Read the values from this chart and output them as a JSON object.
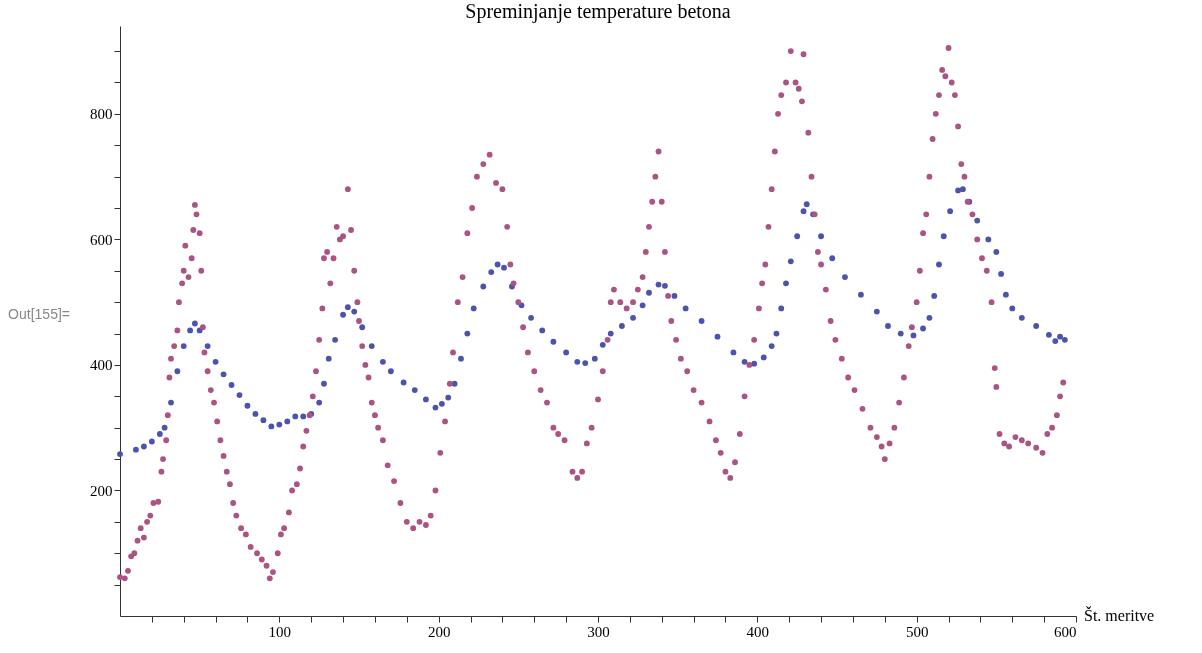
{
  "chart_data": {
    "type": "scatter",
    "title": "Spreminjanje temperature betona",
    "xlabel": "Št. meritve",
    "annotations": [
      "Out[155]="
    ],
    "xlim": [
      0,
      600
    ],
    "ylim": [
      0,
      940
    ],
    "xticks": [
      {
        "value": 20,
        "label": null
      },
      {
        "value": 40,
        "label": null
      },
      {
        "value": 60,
        "label": null
      },
      {
        "value": 80,
        "label": null
      },
      100,
      {
        "value": 120,
        "label": null
      },
      {
        "value": 140,
        "label": null
      },
      {
        "value": 160,
        "label": null
      },
      {
        "value": 180,
        "label": null
      },
      200,
      {
        "value": 220,
        "label": null
      },
      {
        "value": 240,
        "label": null
      },
      {
        "value": 260,
        "label": null
      },
      {
        "value": 280,
        "label": null
      },
      300,
      {
        "value": 320,
        "label": null
      },
      {
        "value": 340,
        "label": null
      },
      {
        "value": 360,
        "label": null
      },
      {
        "value": 380,
        "label": null
      },
      400,
      {
        "value": 420,
        "label": null
      },
      {
        "value": 440,
        "label": null
      },
      {
        "value": 460,
        "label": null
      },
      {
        "value": 480,
        "label": null
      },
      500,
      {
        "value": 520,
        "label": null
      },
      {
        "value": 540,
        "label": null
      },
      {
        "value": 560,
        "label": null
      },
      {
        "value": 580,
        "label": null
      },
      600
    ],
    "yticks": [
      {
        "value": 50,
        "label": null
      },
      {
        "value": 100,
        "label": null
      },
      {
        "value": 150,
        "label": null
      },
      200,
      {
        "value": 250,
        "label": null
      },
      {
        "value": 300,
        "label": null
      },
      {
        "value": 350,
        "label": null
      },
      400,
      {
        "value": 450,
        "label": null
      },
      {
        "value": 500,
        "label": null
      },
      {
        "value": 550,
        "label": null
      },
      600,
      {
        "value": 650,
        "label": null
      },
      {
        "value": 700,
        "label": null
      },
      {
        "value": 750,
        "label": null
      },
      800,
      {
        "value": 850,
        "label": null
      },
      {
        "value": 900,
        "label": null
      }
    ],
    "grid": false,
    "marker": "circle",
    "series": [
      {
        "color": "#4b53ad",
        "x": [
          0,
          10,
          15,
          20,
          25,
          28,
          32,
          36,
          40,
          44,
          47,
          50,
          55,
          60,
          65,
          70,
          75,
          80,
          85,
          90,
          95,
          100,
          105,
          110,
          115,
          120,
          125,
          128,
          131,
          135,
          140,
          143,
          147,
          152,
          158,
          165,
          170,
          178,
          185,
          192,
          198,
          202,
          206,
          210,
          214,
          218,
          222,
          228,
          233,
          237,
          241,
          246,
          252,
          258,
          265,
          272,
          280,
          287,
          292,
          298,
          303,
          308,
          315,
          322,
          328,
          332,
          338,
          342,
          348,
          355,
          365,
          375,
          385,
          392,
          398,
          404,
          409,
          412,
          415,
          418,
          421,
          425,
          429,
          431,
          435,
          440,
          447,
          455,
          465,
          475,
          482,
          490,
          498,
          504,
          508,
          511,
          514,
          517,
          521,
          526,
          529,
          533,
          538,
          545,
          550,
          553,
          556,
          560,
          566,
          575,
          583,
          587,
          590,
          593
        ],
        "values": [
          258,
          265,
          270,
          278,
          290,
          300,
          340,
          390,
          430,
          455,
          466,
          455,
          430,
          405,
          385,
          368,
          352,
          335,
          322,
          312,
          302,
          305,
          310,
          318,
          318,
          322,
          340,
          370,
          410,
          440,
          480,
          492,
          485,
          460,
          430,
          405,
          390,
          372,
          360,
          345,
          332,
          338,
          348,
          370,
          410,
          450,
          490,
          525,
          548,
          560,
          555,
          525,
          495,
          475,
          455,
          437,
          420,
          405,
          403,
          410,
          432,
          450,
          462,
          475,
          495,
          515,
          528,
          526,
          510,
          490,
          470,
          445,
          420,
          405,
          402,
          412,
          430,
          450,
          490,
          530,
          565,
          605,
          645,
          656,
          640,
          605,
          570,
          540,
          512,
          485,
          462,
          450,
          447,
          458,
          475,
          510,
          560,
          605,
          645,
          678,
          680,
          660,
          630,
          600,
          580,
          545,
          512,
          490,
          475,
          462,
          448,
          438,
          445,
          440
        ]
      },
      {
        "color": "#ab5382",
        "x": [
          0,
          3,
          5,
          7,
          9,
          11,
          13,
          15,
          17,
          19,
          21,
          24,
          26,
          27,
          29,
          30,
          31,
          32,
          34,
          36,
          37,
          39,
          40,
          41,
          43,
          45,
          46,
          47,
          48,
          50,
          51,
          52,
          53,
          55,
          57,
          59,
          61,
          63,
          65,
          67,
          69,
          71,
          73,
          76,
          79,
          82,
          86,
          89,
          92,
          94,
          96,
          99,
          101,
          103,
          106,
          108,
          111,
          113,
          115,
          117,
          119,
          121,
          123,
          125,
          127,
          128,
          130,
          132,
          134,
          136,
          138,
          140,
          143,
          145,
          147,
          149,
          150,
          152,
          154,
          156,
          158,
          160,
          162,
          165,
          168,
          172,
          176,
          180,
          184,
          188,
          192,
          195,
          198,
          201,
          204,
          207,
          209,
          212,
          215,
          218,
          221,
          224,
          228,
          232,
          236,
          240,
          243,
          245,
          247,
          250,
          253,
          256,
          260,
          264,
          268,
          272,
          275,
          279,
          284,
          287,
          290,
          293,
          296,
          300,
          303,
          306,
          308,
          310,
          314,
          318,
          322,
          325,
          328,
          330,
          332,
          334,
          336,
          338,
          340,
          342,
          344,
          346,
          349,
          352,
          356,
          360,
          365,
          370,
          374,
          377,
          380,
          383,
          386,
          389,
          392,
          395,
          398,
          401,
          403,
          405,
          407,
          409,
          411,
          413,
          415,
          418,
          421,
          424,
          426,
          428,
          429,
          432,
          434,
          436,
          438,
          440,
          443,
          446,
          449,
          453,
          457,
          461,
          466,
          471,
          475,
          478,
          480,
          483,
          486,
          489,
          492,
          495,
          497,
          500,
          502,
          504,
          506,
          508,
          510,
          512,
          514,
          516,
          518,
          520,
          522,
          524,
          526,
          528,
          530,
          532,
          535,
          538,
          541,
          544,
          547,
          549,
          550,
          552,
          555,
          558,
          562,
          566,
          570,
          575,
          579,
          582,
          585,
          588,
          590,
          592
        ],
        "values": [
          62,
          60,
          72,
          95,
          100,
          120,
          140,
          125,
          150,
          160,
          180,
          182,
          230,
          250,
          280,
          320,
          380,
          410,
          430,
          455,
          500,
          530,
          550,
          590,
          540,
          570,
          615,
          655,
          640,
          610,
          550,
          460,
          420,
          390,
          360,
          340,
          310,
          280,
          255,
          230,
          210,
          180,
          160,
          140,
          130,
          110,
          100,
          90,
          80,
          60,
          70,
          100,
          130,
          140,
          165,
          200,
          210,
          235,
          270,
          295,
          320,
          350,
          390,
          440,
          490,
          570,
          580,
          530,
          570,
          620,
          600,
          605,
          680,
          615,
          550,
          500,
          470,
          430,
          400,
          380,
          340,
          320,
          300,
          280,
          240,
          215,
          180,
          150,
          140,
          150,
          145,
          160,
          200,
          260,
          310,
          370,
          420,
          500,
          540,
          610,
          650,
          700,
          720,
          735,
          690,
          680,
          620,
          560,
          530,
          500,
          460,
          420,
          390,
          360,
          340,
          300,
          290,
          280,
          230,
          220,
          230,
          275,
          300,
          345,
          390,
          440,
          500,
          520,
          500,
          490,
          500,
          520,
          540,
          580,
          620,
          660,
          700,
          740,
          660,
          580,
          510,
          470,
          440,
          410,
          390,
          360,
          340,
          310,
          280,
          260,
          230,
          220,
          245,
          290,
          350,
          400,
          440,
          490,
          530,
          560,
          620,
          680,
          740,
          800,
          830,
          850,
          900,
          850,
          840,
          820,
          895,
          770,
          700,
          640,
          580,
          560,
          520,
          470,
          440,
          410,
          380,
          360,
          330,
          300,
          285,
          270,
          250,
          275,
          300,
          340,
          380,
          430,
          460,
          500,
          550,
          610,
          640,
          700,
          760,
          800,
          830,
          870,
          860,
          905,
          850,
          830,
          780,
          720,
          700,
          660,
          640,
          600,
          570,
          550,
          500,
          395,
          365,
          290,
          275,
          270,
          285,
          280,
          275,
          268,
          260,
          290,
          300,
          320,
          350,
          372
        ]
      }
    ]
  }
}
